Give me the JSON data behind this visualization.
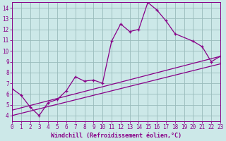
{
  "xlabel": "Windchill (Refroidissement éolien,°C)",
  "bg_color": "#cce8e8",
  "grid_color": "#99bbbb",
  "line_color": "#880088",
  "xmin": 0,
  "xmax": 23,
  "ymin": 3.5,
  "ymax": 14.5,
  "yticks": [
    4,
    5,
    6,
    7,
    8,
    9,
    10,
    11,
    12,
    13,
    14
  ],
  "xticks": [
    0,
    1,
    2,
    3,
    4,
    5,
    6,
    7,
    8,
    9,
    10,
    11,
    12,
    13,
    14,
    15,
    16,
    17,
    18,
    19,
    20,
    21,
    22,
    23
  ],
  "line1_x": [
    0,
    1,
    2,
    3,
    4,
    5,
    6,
    7,
    8,
    9,
    10,
    11,
    12,
    13,
    14,
    15,
    16,
    17,
    18,
    20,
    21,
    22,
    23
  ],
  "line1_y": [
    6.5,
    5.9,
    4.8,
    4.0,
    5.2,
    5.5,
    6.3,
    7.6,
    7.2,
    7.3,
    7.0,
    10.9,
    12.5,
    11.8,
    12.0,
    14.5,
    13.8,
    12.8,
    11.6,
    10.9,
    10.4,
    9.0,
    9.5
  ],
  "line2_x": [
    0,
    23
  ],
  "line2_y": [
    4.5,
    9.5
  ],
  "line3_x": [
    0,
    23
  ],
  "line3_y": [
    4.0,
    8.8
  ],
  "tick_fontsize": 5.5,
  "xlabel_fontsize": 6.0
}
